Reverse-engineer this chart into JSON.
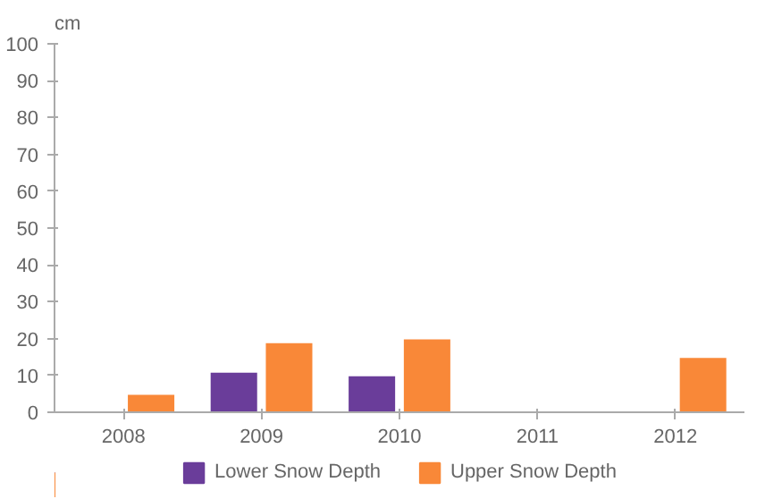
{
  "chart_data": {
    "type": "bar",
    "ylabel": "cm",
    "categories": [
      "2008",
      "2009",
      "2010",
      "2011",
      "2012"
    ],
    "series": [
      {
        "name": "Lower Snow Depth",
        "color": "#6a3d9a",
        "values": [
          null,
          11,
          10,
          null,
          null
        ]
      },
      {
        "name": "Upper Snow Depth",
        "color": "#f98838",
        "values": [
          5,
          19,
          20,
          null,
          15
        ]
      }
    ],
    "ylim": [
      0,
      100
    ],
    "yticks": [
      0,
      10,
      20,
      30,
      40,
      50,
      60,
      70,
      80,
      90,
      100
    ],
    "grid": false,
    "legend": "bottom"
  }
}
